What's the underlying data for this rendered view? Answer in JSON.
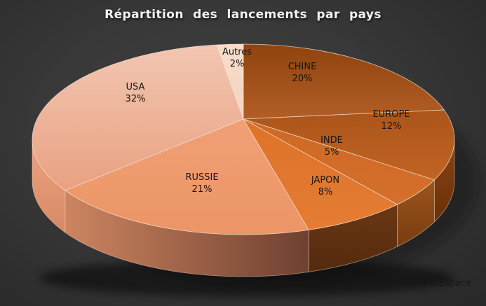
{
  "page": {
    "watermark": "© Rêves d'Espace",
    "background_color": "#2e2e2e",
    "title_color": "#f2f2f2",
    "label_color": "#161616"
  },
  "chart_data": {
    "type": "pie",
    "style": "3d",
    "title": "Répartition des lancements par pays",
    "legend": "none",
    "data_labels": "category name + percent, inside slices",
    "direction": "clockwise",
    "start_angle_deg": 0,
    "unit": "%",
    "categories": [
      "CHINE",
      "EUROPE",
      "INDE",
      "JAPON",
      "RUSSIE",
      "USA",
      "Autres"
    ],
    "values": [
      20,
      12,
      5,
      8,
      21,
      32,
      2
    ],
    "colors": {
      "CHINE": "#a5521b",
      "EUROPE": "#b85e1f",
      "INDE": "#d06c28",
      "JAPON": "#e1772e",
      "RUSSIE": "#ee9b6e",
      "USA": "#eebaa4",
      "Autres": "#f6dcc9"
    }
  }
}
